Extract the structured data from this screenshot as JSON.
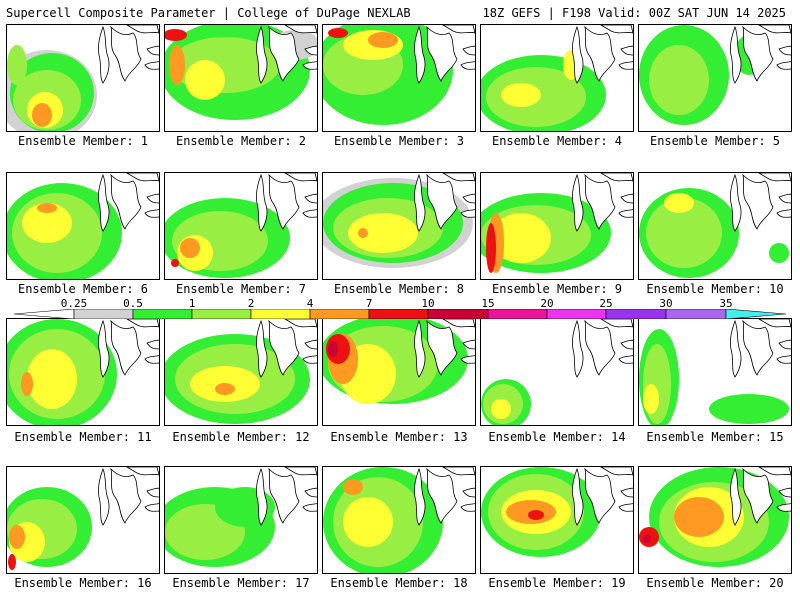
{
  "header": {
    "left_title": "Supercell Composite Parameter | College of DuPage NEXLAB",
    "right_title": "18Z GEFS | F198 Valid: 00Z SAT JUN 14 2025"
  },
  "colorbar": {
    "ticks": [
      "0.25",
      "0.5",
      "1",
      "2",
      "4",
      "7",
      "10",
      "15",
      "20",
      "25",
      "30",
      "35"
    ],
    "colors": [
      "#d2d2d2",
      "#33ee33",
      "#99ee44",
      "#ffff33",
      "#ff9922",
      "#ee1111",
      "#cc0033",
      "#ee1199",
      "#ee33ee",
      "#9933ee",
      "#aa66ee",
      "#44eeee"
    ]
  },
  "panels": [
    {
      "label": "Ensemble Member: 1"
    },
    {
      "label": "Ensemble Member: 2"
    },
    {
      "label": "Ensemble Member: 3"
    },
    {
      "label": "Ensemble Member: 4"
    },
    {
      "label": "Ensemble Member: 5"
    },
    {
      "label": "Ensemble Member: 6"
    },
    {
      "label": "Ensemble Member: 7"
    },
    {
      "label": "Ensemble Member: 8"
    },
    {
      "label": "Ensemble Member: 9"
    },
    {
      "label": "Ensemble Member: 10"
    },
    {
      "label": "Ensemble Member: 11"
    },
    {
      "label": "Ensemble Member: 12"
    },
    {
      "label": "Ensemble Member: 13"
    },
    {
      "label": "Ensemble Member: 14"
    },
    {
      "label": "Ensemble Member: 15"
    },
    {
      "label": "Ensemble Member: 16"
    },
    {
      "label": "Ensemble Member: 17"
    },
    {
      "label": "Ensemble Member: 18"
    },
    {
      "label": "Ensemble Member: 19"
    },
    {
      "label": "Ensemble Member: 20"
    }
  ]
}
